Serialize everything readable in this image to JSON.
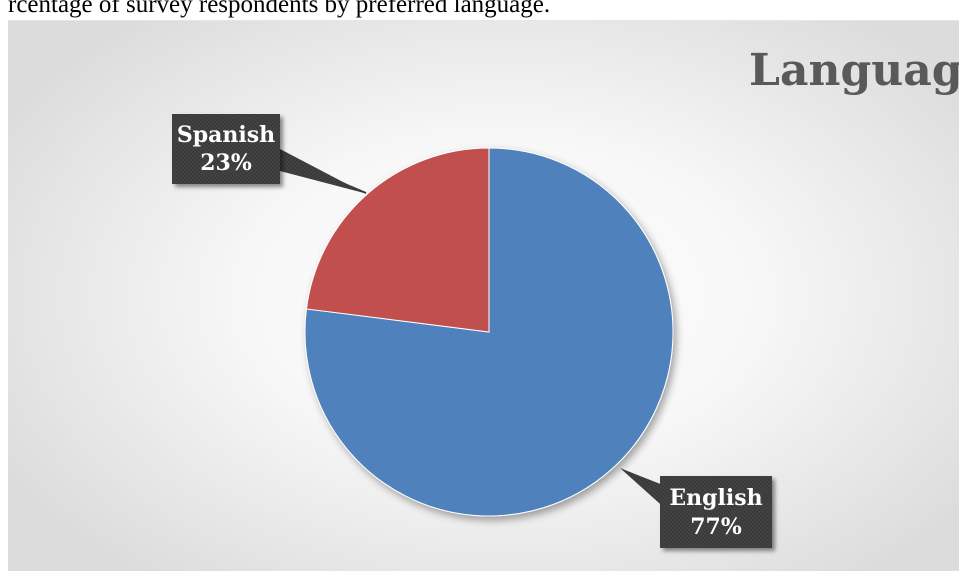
{
  "caption": "rcentage of survey respondents by preferred language.",
  "chart_data": {
    "type": "pie",
    "title": "Language",
    "slices": [
      {
        "name": "English",
        "label": "English",
        "value": 77,
        "value_label": "77%",
        "color": "#4f81bd"
      },
      {
        "name": "Spanish",
        "label": "Spanish",
        "value": 23,
        "value_label": "23%",
        "color": "#c0504d"
      }
    ],
    "start_angle_deg": 0,
    "direction": "clockwise",
    "legend": "none",
    "data_labels": "callout"
  }
}
